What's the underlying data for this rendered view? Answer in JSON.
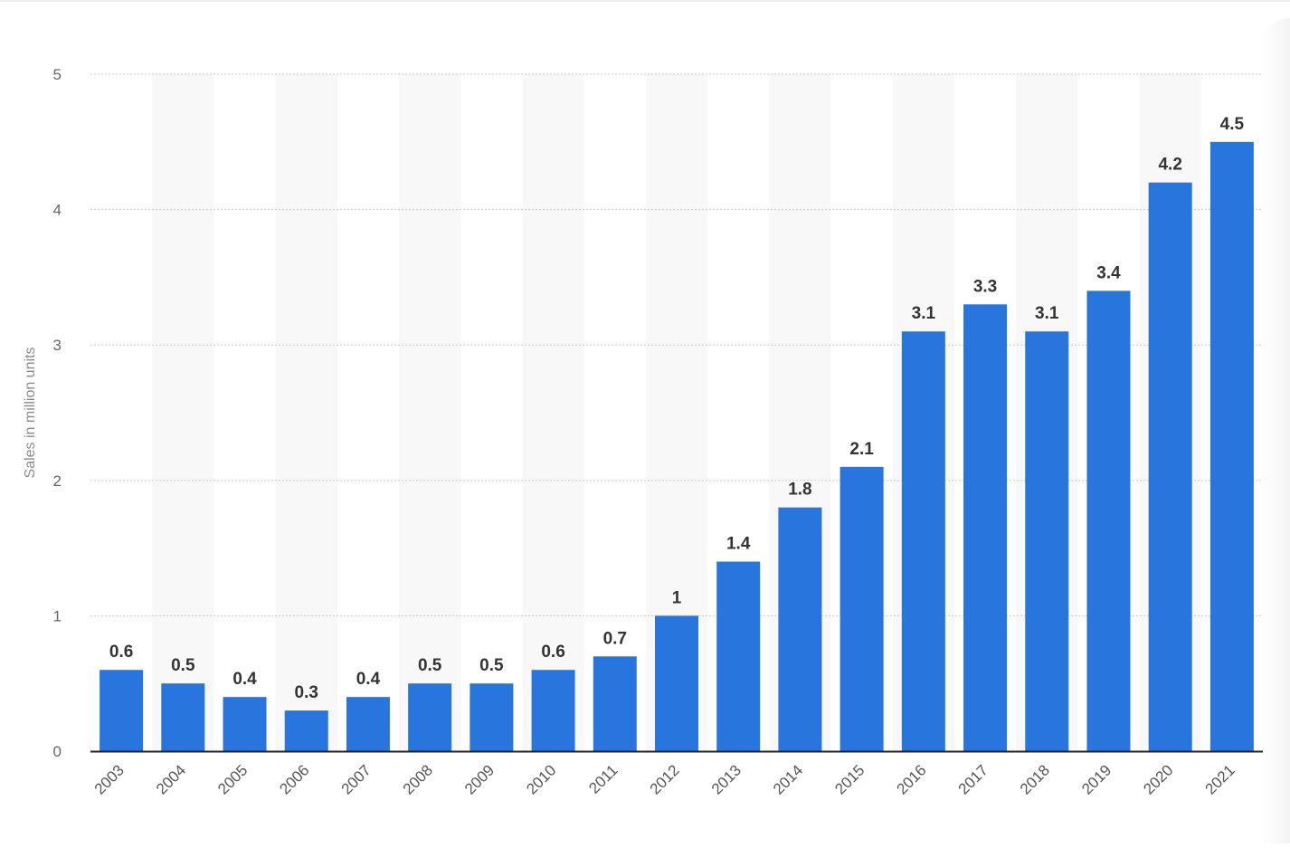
{
  "chart_data": {
    "type": "bar",
    "title": "",
    "xlabel": "",
    "ylabel": "Sales in million units",
    "ylim": [
      0,
      5
    ],
    "yticks": [
      0,
      1,
      2,
      3,
      4,
      5
    ],
    "grid": true,
    "categories": [
      "2003",
      "2004",
      "2005",
      "2006",
      "2007",
      "2008",
      "2009",
      "2010",
      "2011",
      "2012",
      "2013",
      "2014",
      "2015",
      "2016",
      "2017",
      "2018",
      "2019",
      "2020",
      "2021"
    ],
    "values": [
      0.6,
      0.5,
      0.4,
      0.3,
      0.4,
      0.5,
      0.5,
      0.6,
      0.7,
      1,
      1.4,
      1.8,
      2.1,
      3.1,
      3.3,
      3.1,
      3.4,
      4.2,
      4.5
    ],
    "data_labels": [
      "0.6",
      "0.5",
      "0.4",
      "0.3",
      "0.4",
      "0.5",
      "0.5",
      "0.6",
      "0.7",
      "1",
      "1.4",
      "1.8",
      "2.1",
      "3.1",
      "3.3",
      "3.1",
      "3.4",
      "4.2",
      "4.5"
    ],
    "colors": {
      "bar": "#2775dd",
      "grid": "#c8c8c8",
      "axis": "#222222",
      "band": "#f8f8f8"
    }
  }
}
